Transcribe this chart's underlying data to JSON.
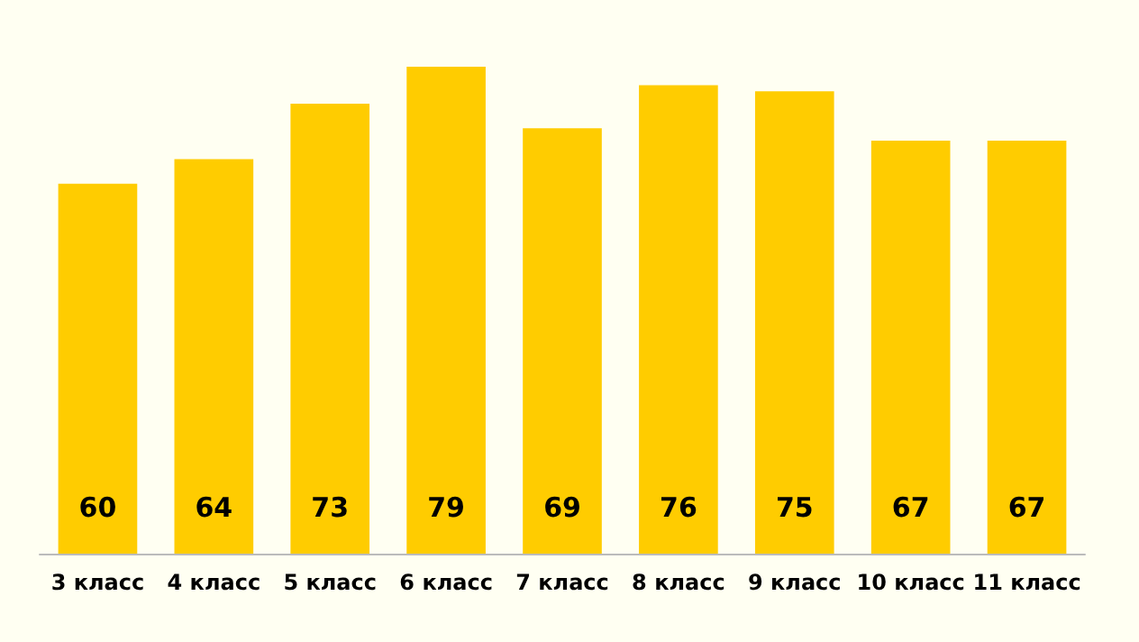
{
  "chart_data": {
    "type": "bar",
    "categories": [
      "3 класс",
      "4 класс",
      "5 класс",
      "6 класс",
      "7 класс",
      "8 класс",
      "9 класс",
      "10 класс",
      "11 класс"
    ],
    "values": [
      60,
      64,
      73,
      79,
      69,
      76,
      75,
      67,
      67
    ],
    "color": "#ffcc00",
    "data_labels": true
  }
}
